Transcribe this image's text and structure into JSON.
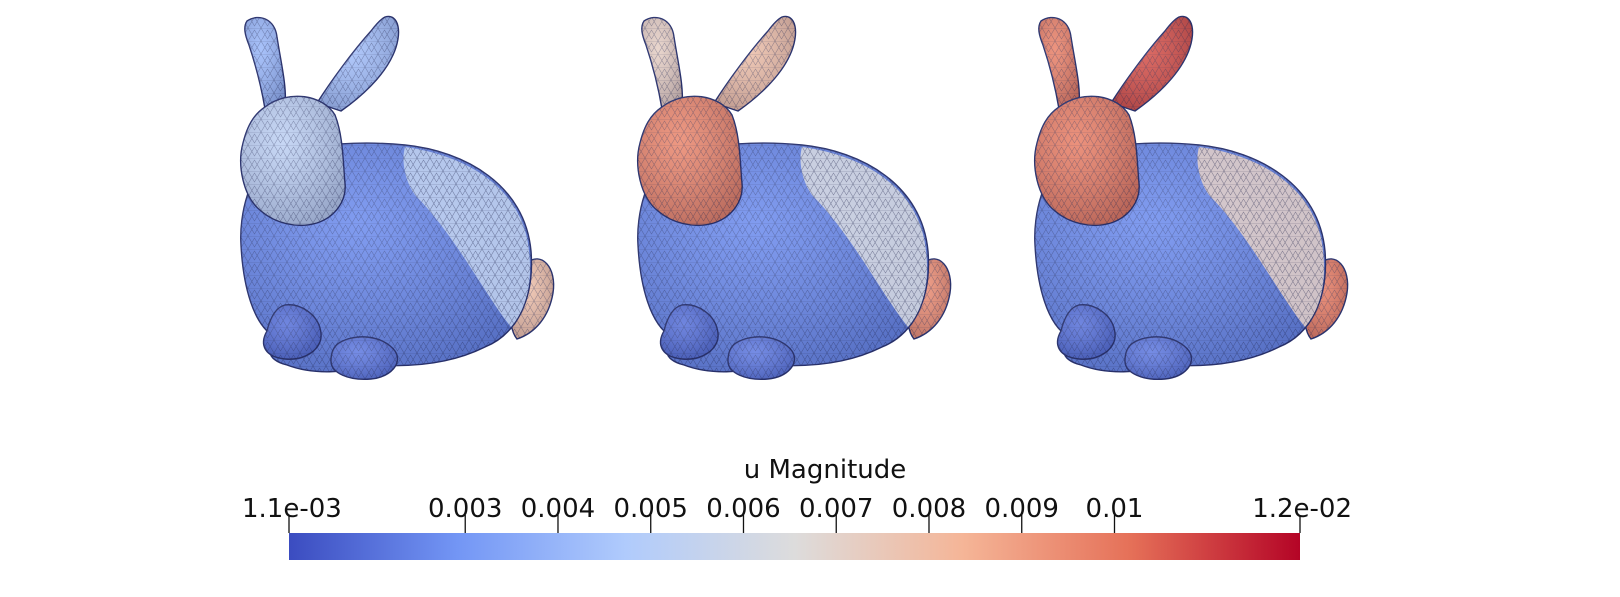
{
  "figure": {
    "panels": [
      {
        "id": "panel-1",
        "head_level": 0.38,
        "ear_level": 0.3,
        "tail_level": 0.62,
        "back_level": 0.4
      },
      {
        "id": "panel-2",
        "head_level": 0.78,
        "ear_level": 0.62,
        "tail_level": 0.76,
        "back_level": 0.48
      },
      {
        "id": "panel-3",
        "head_level": 0.8,
        "ear_level": 0.88,
        "tail_level": 0.8,
        "back_level": 0.55
      }
    ]
  },
  "colorbar": {
    "title": "u Magnitude",
    "min": 0.0011,
    "max": 0.012,
    "min_label": "1.1e-03",
    "max_label": "1.2e-02",
    "ticks": [
      {
        "value": 0.003,
        "label": "0.003"
      },
      {
        "value": 0.004,
        "label": "0.004"
      },
      {
        "value": 0.005,
        "label": "0.005"
      },
      {
        "value": 0.006,
        "label": "0.006"
      },
      {
        "value": 0.007,
        "label": "0.007"
      },
      {
        "value": 0.008,
        "label": "0.008"
      },
      {
        "value": 0.009,
        "label": "0.009"
      },
      {
        "value": 0.01,
        "label": "0.01"
      }
    ],
    "colormap": [
      "#3b4cc0",
      "#7396f5",
      "#b0cbfc",
      "#dddcdc",
      "#f5b597",
      "#e57058",
      "#b40426"
    ]
  }
}
